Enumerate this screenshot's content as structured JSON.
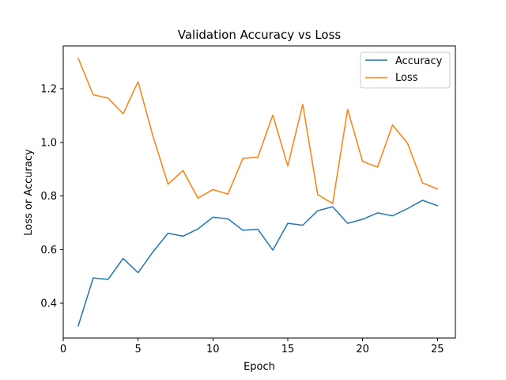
{
  "chart_data": {
    "type": "line",
    "title": "Validation Accuracy vs Loss",
    "xlabel": "Epoch",
    "ylabel": "Loss or Accuracy",
    "xlim": [
      0,
      26.2
    ],
    "ylim": [
      0.27,
      1.36
    ],
    "x_ticks": [
      0,
      5,
      10,
      15,
      20,
      25
    ],
    "y_ticks": [
      0.4,
      0.6,
      0.8,
      1.0,
      1.2
    ],
    "y_tick_labels": [
      "0.4",
      "0.6",
      "0.8",
      "1.0",
      "1.2"
    ],
    "grid": false,
    "legend": "top-right",
    "x": [
      1,
      2,
      3,
      4,
      5,
      6,
      7,
      8,
      9,
      10,
      11,
      12,
      13,
      14,
      15,
      16,
      17,
      18,
      19,
      20,
      21,
      22,
      23,
      24,
      25
    ],
    "series": [
      {
        "name": "Accuracy",
        "color": "#1f77b4",
        "values": [
          0.315,
          0.494,
          0.489,
          0.567,
          0.514,
          0.592,
          0.661,
          0.65,
          0.677,
          0.721,
          0.715,
          0.672,
          0.676,
          0.598,
          0.698,
          0.691,
          0.745,
          0.76,
          0.698,
          0.713,
          0.737,
          0.726,
          0.753,
          0.784,
          0.764
        ]
      },
      {
        "name": "Loss",
        "color": "#ff7f0e",
        "values": [
          1.314,
          1.178,
          1.165,
          1.107,
          1.226,
          1.022,
          0.844,
          0.895,
          0.792,
          0.824,
          0.807,
          0.94,
          0.945,
          1.102,
          0.912,
          1.142,
          0.805,
          0.772,
          1.123,
          0.929,
          0.908,
          1.065,
          0.997,
          0.849,
          0.826
        ]
      }
    ]
  }
}
